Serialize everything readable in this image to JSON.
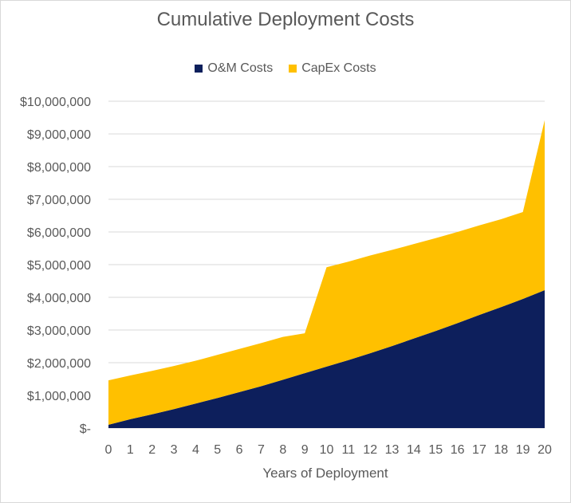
{
  "chart_data": {
    "type": "area",
    "stacked": true,
    "title": "Cumulative Deployment Costs",
    "xlabel": "Years of Deployment",
    "ylabel": "",
    "x": [
      0,
      1,
      2,
      3,
      4,
      5,
      6,
      7,
      8,
      9,
      10,
      11,
      12,
      13,
      14,
      15,
      16,
      17,
      18,
      19,
      20
    ],
    "ylim": [
      0,
      10000000
    ],
    "yticks": [
      0,
      1000000,
      2000000,
      3000000,
      4000000,
      5000000,
      6000000,
      7000000,
      8000000,
      9000000,
      10000000
    ],
    "ytick_labels": [
      "$-",
      "$1,000,000",
      "$2,000,000",
      "$3,000,000",
      "$4,000,000",
      "$5,000,000",
      "$6,000,000",
      "$7,000,000",
      "$8,000,000",
      "$9,000,000",
      "$10,000,000"
    ],
    "grid": true,
    "legend_position": "top",
    "series": [
      {
        "name": "O&M Costs",
        "color": "#0d1f5c",
        "values": [
          100000,
          270000,
          420000,
          580000,
          750000,
          920000,
          1100000,
          1280000,
          1480000,
          1680000,
          1880000,
          2080000,
          2290000,
          2510000,
          2740000,
          2970000,
          3210000,
          3460000,
          3700000,
          3950000,
          4220000
        ]
      },
      {
        "name": "CapEx Costs",
        "color": "#ffc000",
        "values": [
          1360000,
          1340000,
          1330000,
          1320000,
          1310000,
          1320000,
          1320000,
          1320000,
          1310000,
          1220000,
          3040000,
          3010000,
          2990000,
          2940000,
          2890000,
          2840000,
          2790000,
          2740000,
          2690000,
          2660000,
          5200000
        ]
      }
    ]
  }
}
